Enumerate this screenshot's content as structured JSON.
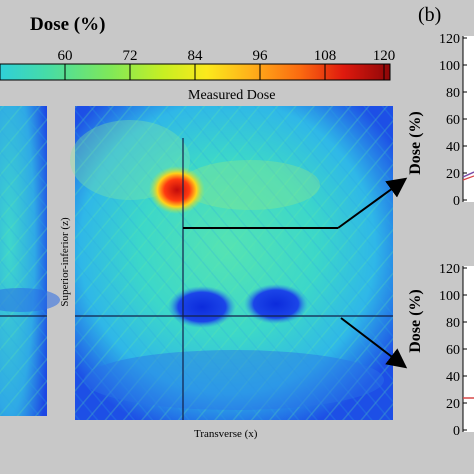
{
  "colorbar": {
    "title": "Dose (%)",
    "ticks": [
      60,
      72,
      84,
      96,
      108,
      120
    ],
    "range": [
      48,
      120
    ]
  },
  "panel_b_label": "(b)",
  "map": {
    "title": "Measured Dose",
    "xlabel": "Transverse (x)",
    "ylabel": "Superior-inferior (z)"
  },
  "chart_data": [
    {
      "type": "bar",
      "title": "",
      "ylabel": "Dose (%)",
      "ylim": [
        0,
        120
      ],
      "yticks": [
        0,
        20,
        40,
        60,
        80,
        100,
        120
      ],
      "categories": [],
      "values": []
    },
    {
      "type": "bar",
      "title": "",
      "ylabel": "Dose (%)",
      "ylim": [
        0,
        120
      ],
      "yticks": [
        0,
        20,
        40,
        60,
        80,
        100,
        120
      ],
      "categories": [],
      "values": []
    }
  ],
  "colors": {
    "background": "#c8c8c8",
    "map_base": "#3ad6c4",
    "map_edge": "#1f52e6",
    "hotspot": "#d80f0f",
    "lowspot": "#1739e0",
    "crosshair": "#13204a"
  }
}
